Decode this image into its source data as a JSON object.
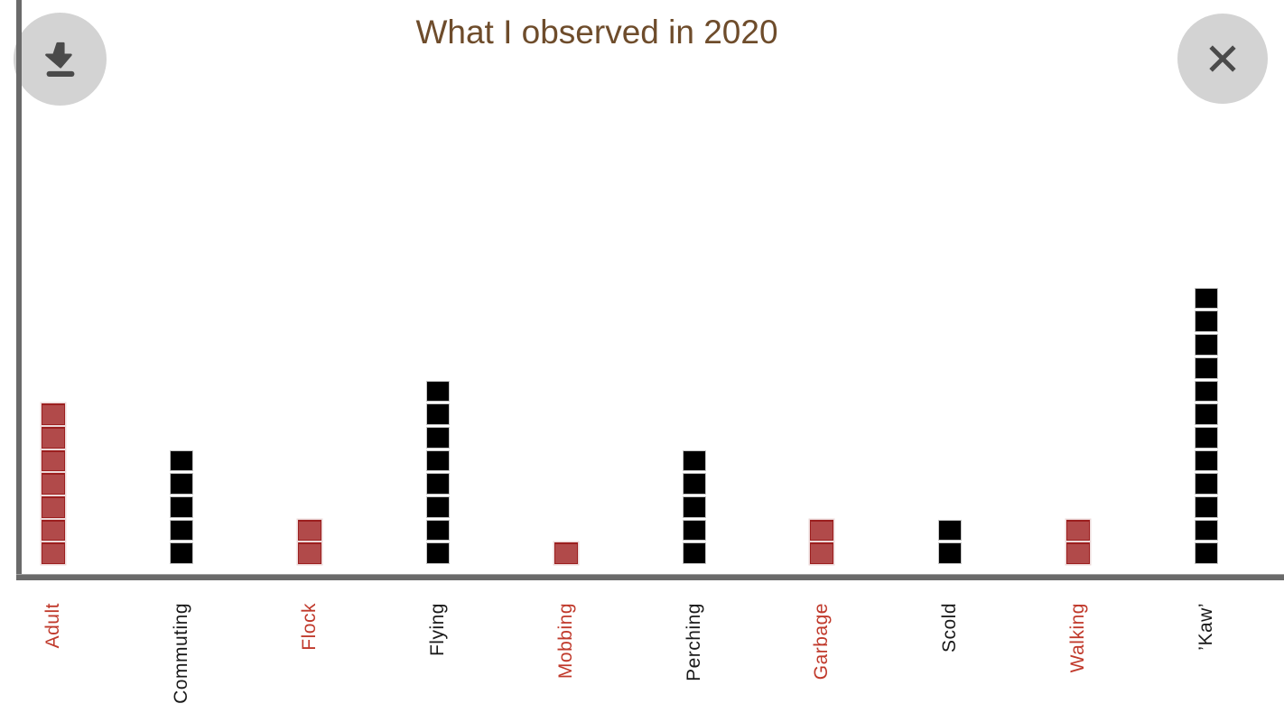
{
  "title": "What I observed in 2020",
  "toolbar": {
    "download_icon": "download-icon",
    "close_icon": "close-icon"
  },
  "colors": {
    "title": "#6e4c2b",
    "axis": "#6a6a6a",
    "button_bg": "#d3d3d3",
    "button_icon": "#4a4a4a",
    "red_fill": "#b14a4a",
    "red_edge": "#9c1f1f",
    "red_halo": "#ecd9d9",
    "black_fill": "#000000",
    "black_edge": "#c4c4c4",
    "red_label": "#c0392b",
    "black_label": "#1a1a1a"
  },
  "chart_data": {
    "type": "bar",
    "style": "unit-squares",
    "title": "What I observed in 2020",
    "categories": [
      "Adult",
      "Commuting",
      "Flock",
      "Flying",
      "Mobbing",
      "Perching",
      "Garbage",
      "Scold",
      "Walking",
      "’Kaw’"
    ],
    "values": [
      7,
      5,
      2,
      8,
      1,
      5,
      2,
      2,
      2,
      12
    ],
    "series_colors": [
      "red",
      "black",
      "red",
      "black",
      "red",
      "black",
      "red",
      "black",
      "red",
      "black"
    ],
    "xlabel": "",
    "ylabel": "",
    "ylim": [
      0,
      12
    ],
    "grid": false,
    "legend": "none",
    "note_unit": "each square = 1 observation (stack height equals value)"
  }
}
